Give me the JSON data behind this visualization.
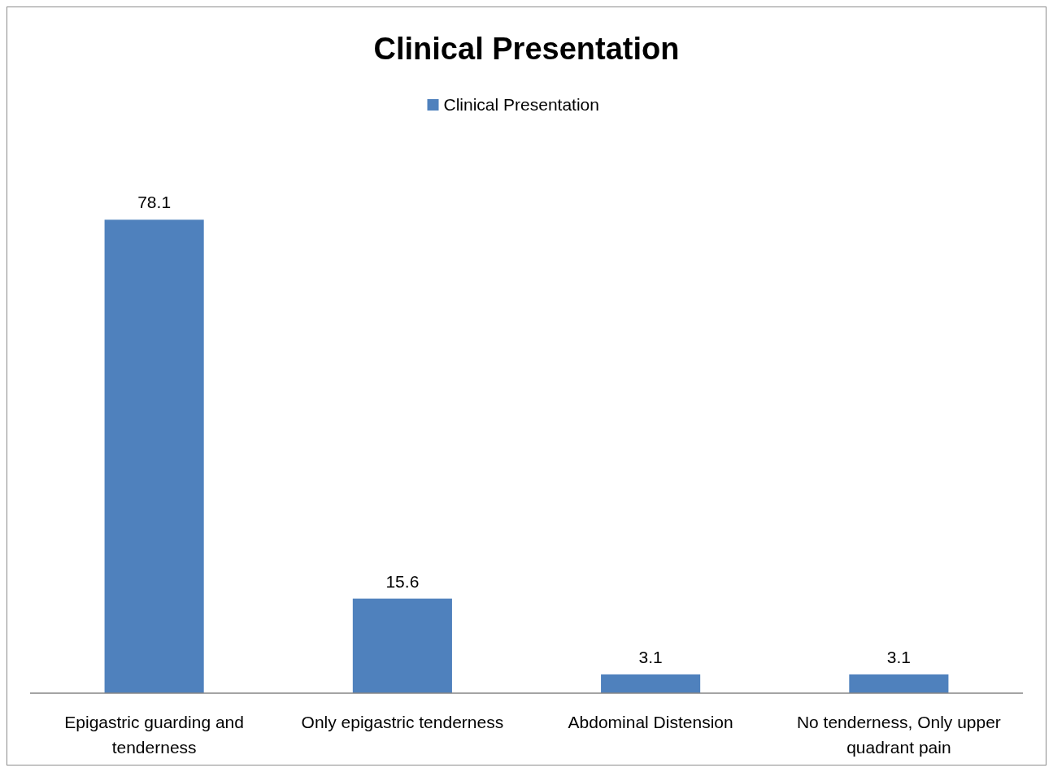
{
  "chart_data": {
    "type": "bar",
    "title": "Clinical Presentation",
    "categories": [
      "Epigastric guarding and tenderness",
      "Only epigastric tenderness",
      "Abdominal Distension",
      "No tenderness, Only upper quadrant pain"
    ],
    "series": [
      {
        "name": "Clinical Presentation",
        "color": "#4f81bd",
        "values": [
          78.1,
          15.6,
          3.1,
          3.1
        ]
      }
    ],
    "data_labels": true,
    "legend": "top",
    "grid": false
  }
}
